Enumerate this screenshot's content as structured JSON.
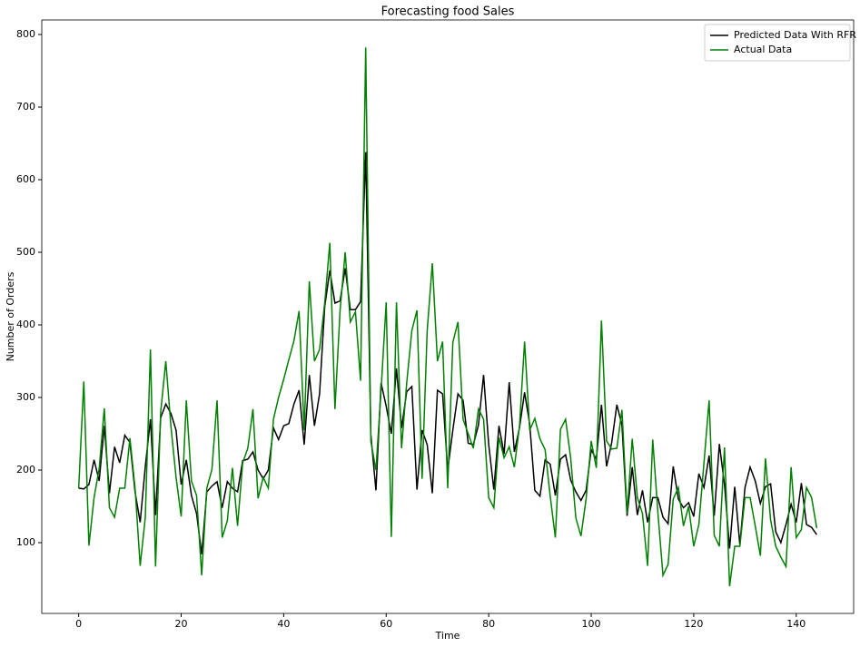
{
  "chart_data": {
    "type": "line",
    "title": "Forecasting food Sales",
    "x_label": "Time",
    "y_label": "Number of Orders",
    "x": [
      0,
      1,
      2,
      3,
      4,
      5,
      6,
      7,
      8,
      9,
      10,
      11,
      12,
      13,
      14,
      15,
      16,
      17,
      18,
      19,
      20,
      21,
      22,
      23,
      24,
      25,
      26,
      27,
      28,
      29,
      30,
      31,
      32,
      33,
      34,
      35,
      36,
      37,
      38,
      39,
      40,
      41,
      42,
      43,
      44,
      45,
      46,
      47,
      48,
      49,
      50,
      51,
      52,
      53,
      54,
      55,
      56,
      57,
      58,
      59,
      60,
      61,
      62,
      63,
      64,
      65,
      66,
      67,
      68,
      69,
      70,
      71,
      72,
      73,
      74,
      75,
      76,
      77,
      78,
      79,
      80,
      81,
      82,
      83,
      84,
      85,
      86,
      87,
      88,
      89,
      90,
      91,
      92,
      93,
      94,
      95,
      96,
      97,
      98,
      99,
      100,
      101,
      102,
      103,
      104,
      105,
      106,
      107,
      108,
      109,
      110,
      111,
      112,
      113,
      114,
      115,
      116,
      117,
      118,
      119,
      120,
      121,
      122,
      123,
      124,
      125,
      126,
      127,
      128,
      129,
      130,
      131,
      132,
      133,
      134,
      135,
      136,
      137,
      138,
      139,
      140,
      141,
      142,
      143,
      144
    ],
    "series": [
      {
        "name": "Predicted Data With RFR",
        "color": "#000000",
        "values": [
          175,
          174,
          180,
          214,
          185,
          261,
          168,
          232,
          210,
          248,
          238,
          170,
          128,
          205,
          270,
          138,
          272,
          291,
          278,
          255,
          180,
          214,
          165,
          140,
          84,
          170,
          178,
          184,
          148,
          184,
          175,
          170,
          213,
          215,
          225,
          200,
          188,
          200,
          258,
          242,
          261,
          264,
          291,
          310,
          235,
          331,
          261,
          305,
          425,
          475,
          430,
          433,
          478,
          421,
          421,
          432,
          638,
          249,
          172,
          320,
          288,
          250,
          340,
          258,
          308,
          315,
          173,
          255,
          235,
          168,
          310,
          305,
          200,
          255,
          305,
          296,
          237,
          235,
          262,
          331,
          235,
          173,
          261,
          222,
          321,
          225,
          258,
          307,
          263,
          172,
          164,
          214,
          208,
          165,
          215,
          221,
          186,
          170,
          158,
          172,
          228,
          215,
          290,
          205,
          238,
          290,
          262,
          137,
          204,
          138,
          172,
          128,
          162,
          162,
          135,
          126,
          205,
          160,
          148,
          155,
          136,
          195,
          176,
          220,
          137,
          236,
          180,
          92,
          177,
          97,
          176,
          204,
          185,
          154,
          177,
          181,
          115,
          100,
          125,
          153,
          128,
          182,
          125,
          121,
          111
        ]
      },
      {
        "name": "Actual Data",
        "color": "#008000",
        "values": [
          175,
          322,
          96,
          162,
          202,
          285,
          148,
          135,
          175,
          175,
          244,
          175,
          68,
          135,
          366,
          67,
          280,
          350,
          260,
          190,
          136,
          296,
          185,
          165,
          55,
          175,
          201,
          296,
          107,
          130,
          203,
          123,
          210,
          230,
          284,
          161,
          190,
          175,
          270,
          300,
          325,
          352,
          378,
          419,
          255,
          460,
          350,
          366,
          430,
          513,
          284,
          420,
          500,
          404,
          418,
          323,
          782,
          240,
          200,
          310,
          431,
          108,
          431,
          230,
          320,
          392,
          420,
          188,
          392,
          485,
          350,
          377,
          175,
          376,
          404,
          270,
          250,
          230,
          284,
          270,
          162,
          148,
          245,
          217,
          232,
          204,
          260,
          377,
          255,
          271,
          243,
          228,
          164,
          107,
          256,
          270,
          216,
          134,
          109,
          160,
          240,
          203,
          406,
          240,
          229,
          230,
          283,
          140,
          243,
          162,
          140,
          68,
          242,
          142,
          55,
          70,
          160,
          176,
          123,
          150,
          95,
          125,
          210,
          296,
          110,
          95,
          231,
          40,
          95,
          95,
          162,
          162,
          123,
          82,
          216,
          131,
          95,
          80,
          67,
          204,
          107,
          118,
          176,
          162,
          120
        ]
      }
    ],
    "xlim": [
      -7.2,
      151.2
    ],
    "ylim": [
      2.5,
      820
    ],
    "xticks": [
      0,
      20,
      40,
      60,
      80,
      100,
      120,
      140
    ],
    "yticks": [
      100,
      200,
      300,
      400,
      500,
      600,
      700,
      800
    ],
    "legend": "upper right"
  }
}
